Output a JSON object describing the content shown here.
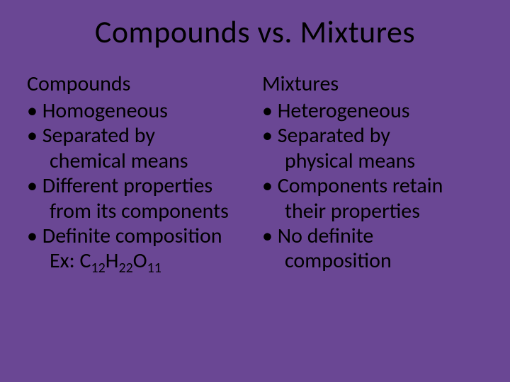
{
  "background_color": "#6a4794",
  "text_color": "#000000",
  "title": "Compounds vs. Mixtures",
  "title_fontsize": 44,
  "body_fontsize": 30,
  "sub_fontsize": 20,
  "left": {
    "heading": "Compounds",
    "b1": "Homogeneous",
    "b2a": "Separated by",
    "b2b": "chemical means",
    "b3a": "Different properties",
    "b3b": "from its components",
    "b4a": "Definite composition",
    "b4b_prefix": "Ex: C",
    "b4b_s1": "12",
    "b4b_mid1": "H",
    "b4b_s2": "22",
    "b4b_mid2": "O",
    "b4b_s3": "11"
  },
  "right": {
    "heading": "Mixtures",
    "b1": "Heterogeneous",
    "b2a": "Separated by",
    "b2b": "physical means",
    "b3a": "Components retain",
    "b3b": "their properties",
    "b4a": "No definite",
    "b4b": "composition"
  }
}
